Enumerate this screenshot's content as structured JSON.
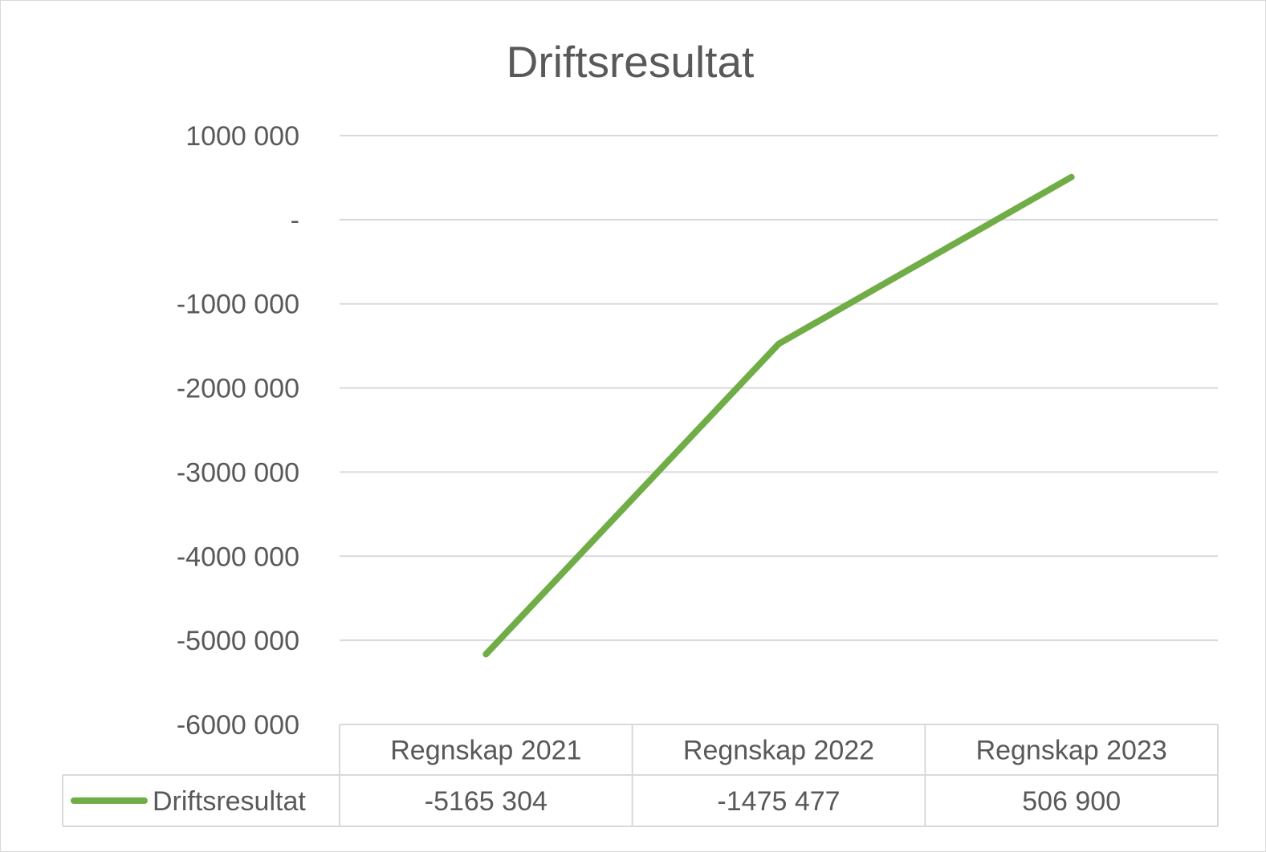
{
  "chart_data": {
    "type": "line",
    "title": "Driftsresultat",
    "xlabel": "",
    "ylabel": "",
    "categories": [
      "Regnskap 2021",
      "Regnskap 2022",
      "Regnskap 2023"
    ],
    "series": [
      {
        "name": "Driftsresultat",
        "values": [
          -5165304,
          -1475477,
          506900
        ],
        "value_labels": [
          "-5165 304",
          "-1475 477",
          "506 900"
        ],
        "color": "#70ad47"
      }
    ],
    "ylim": [
      -6000000,
      1000000
    ],
    "yticks": [
      {
        "value": 1000000,
        "label": "1000 000"
      },
      {
        "value": 0,
        "label": "-"
      },
      {
        "value": -1000000,
        "label": "-1000 000"
      },
      {
        "value": -2000000,
        "label": "-2000 000"
      },
      {
        "value": -3000000,
        "label": "-3000 000"
      },
      {
        "value": -4000000,
        "label": "-4000 000"
      },
      {
        "value": -5000000,
        "label": "-5000 000"
      },
      {
        "value": -6000000,
        "label": "-6000 000"
      }
    ],
    "grid": true,
    "data_table": true,
    "gridline_color": "#d9d9d9",
    "text_color": "#595959"
  }
}
